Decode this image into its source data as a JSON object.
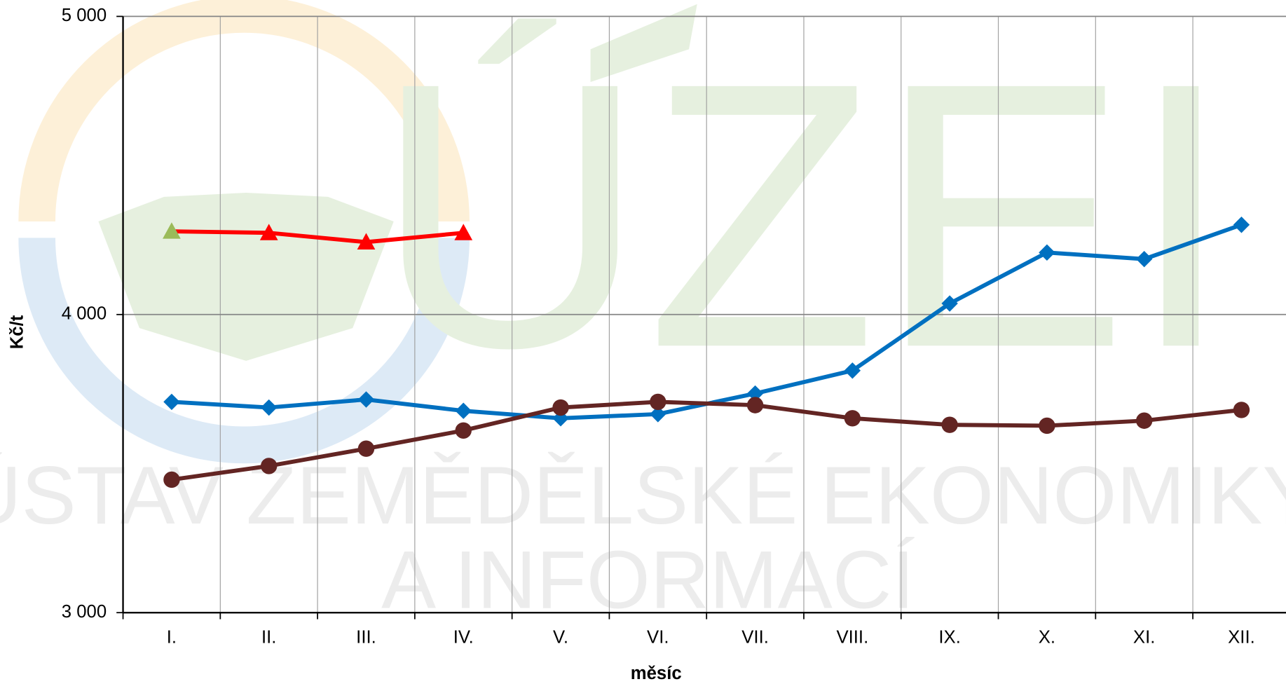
{
  "chart_data": {
    "type": "line",
    "watermark": [
      "ÚZEI",
      "ÚSTAV ZEMĚDĚLSKÉ EKONOMIKY",
      "A INFORMACÍ"
    ],
    "xlabel": "měsíc",
    "ylabel": "Kč/t",
    "categories": [
      "I.",
      "II.",
      "III.",
      "IV.",
      "V.",
      "VI.",
      "VII.",
      "VIII.",
      "IX.",
      "X.",
      "XI.",
      "XII."
    ],
    "ylim": [
      3000,
      5000
    ],
    "yticks": [
      {
        "value": 3000,
        "label": "3 000"
      },
      {
        "value": 4000,
        "label": "4 000"
      },
      {
        "value": 5000,
        "label": "5 000"
      }
    ],
    "grid": true,
    "series": [
      {
        "color": "#0070c0",
        "marker": "diamond",
        "values": [
          3707,
          3688,
          3715,
          3677,
          3652,
          3666,
          3735,
          3812,
          4037,
          4208,
          4186,
          4301
        ]
      },
      {
        "color": "#632523",
        "marker": "circle",
        "values": [
          3446,
          3492,
          3550,
          3611,
          3688,
          3707,
          3696,
          3652,
          3630,
          3627,
          3644,
          3680
        ]
      },
      {
        "color": "#ff0000",
        "marker": "triangle",
        "marker_colors": [
          "#9bbb59",
          "#ff0000",
          "#ff0000",
          "#ff0000"
        ],
        "values": [
          4279,
          4274,
          4243,
          4274,
          null,
          null,
          null,
          null,
          null,
          null,
          null,
          null
        ]
      }
    ]
  }
}
